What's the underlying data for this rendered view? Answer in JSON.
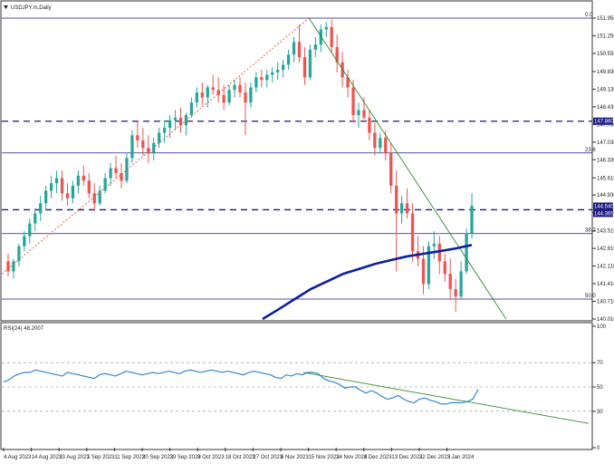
{
  "header": {
    "symbol_label": "USDJPY.m,Daily",
    "dropdown_icon": "triangle-down-icon"
  },
  "rsi_panel": {
    "label": "RSI(24) 48.2007"
  },
  "colors": {
    "bull_candle": "#26a69a",
    "bear_candle": "#ef5350",
    "ma_line": "#0a1fa3",
    "trendline": "#2e8b2e",
    "fib_line": "#1a1a80",
    "rsi_line": "#2f86d6",
    "dashed_level": "#1a1a80",
    "highlight_label_bg": "#1a1a80"
  },
  "chart_data": [
    {
      "type": "candlestick",
      "symbol": "USDJPY.m",
      "timeframe": "Daily",
      "ylim": [
        140.01,
        151.95
      ],
      "y_ticks": [
        151.95,
        151.25,
        150.55,
        149.83,
        149.13,
        148.43,
        147.73,
        147.03,
        146.33,
        145.61,
        144.93,
        144.23,
        143.51,
        142.81,
        142.11,
        141.41,
        140.71,
        140.01
      ],
      "y_tick_labels": [
        "151.950",
        "151.250",
        "150.550",
        "149.830",
        "149.130",
        "148.430",
        "147.730",
        "147.030",
        "146.330",
        "145.610",
        "144.930",
        "144.230",
        "143.510",
        "142.810",
        "142.110",
        "141.410",
        "140.710",
        "140.010"
      ],
      "x_tick_labels": [
        "4 Aug 2023",
        "14 Aug 2023",
        "23 Aug 2023",
        "1 Sep 2023",
        "11 Sep 2023",
        "20 Sep 2023",
        "29 Sep 2023",
        "9 Oct 2023",
        "18 Oct 2023",
        "27 Oct 2023",
        "6 Nov 2023",
        "15 Nov 2023",
        "24 Nov 2023",
        "4 Dec 2023",
        "13 Dec 2023",
        "22 Dec 2023",
        "3 Jan 2024"
      ],
      "ohlc_approx": [
        [
          142.3,
          142.6,
          141.7,
          141.9
        ],
        [
          141.9,
          142.4,
          141.6,
          142.3
        ],
        [
          142.3,
          143.0,
          142.1,
          142.9
        ],
        [
          142.9,
          143.5,
          142.7,
          143.3
        ],
        [
          143.3,
          144.0,
          143.0,
          143.8
        ],
        [
          143.8,
          144.4,
          143.5,
          144.2
        ],
        [
          144.2,
          144.9,
          143.9,
          144.6
        ],
        [
          144.6,
          145.3,
          144.3,
          145.1
        ],
        [
          145.1,
          145.7,
          144.8,
          145.4
        ],
        [
          145.4,
          145.9,
          145.0,
          145.6
        ],
        [
          145.6,
          145.9,
          144.7,
          145.0
        ],
        [
          145.0,
          145.4,
          144.5,
          144.8
        ],
        [
          144.8,
          145.5,
          144.6,
          145.3
        ],
        [
          145.3,
          145.9,
          145.0,
          145.7
        ],
        [
          145.7,
          146.1,
          145.3,
          145.5
        ],
        [
          145.5,
          145.8,
          144.8,
          145.0
        ],
        [
          145.0,
          145.4,
          144.3,
          144.6
        ],
        [
          144.6,
          145.3,
          144.5,
          145.1
        ],
        [
          145.1,
          145.8,
          145.0,
          145.6
        ],
        [
          145.6,
          146.2,
          145.3,
          146.0
        ],
        [
          146.0,
          146.5,
          145.6,
          145.8
        ],
        [
          145.8,
          146.2,
          145.2,
          145.5
        ],
        [
          145.5,
          146.6,
          145.4,
          146.4
        ],
        [
          146.4,
          147.5,
          146.2,
          147.3
        ],
        [
          147.3,
          147.9,
          146.8,
          147.1
        ],
        [
          147.1,
          147.6,
          146.5,
          146.8
        ],
        [
          146.8,
          147.3,
          146.2,
          146.6
        ],
        [
          146.6,
          147.2,
          146.3,
          147.0
        ],
        [
          147.0,
          147.6,
          146.8,
          147.4
        ],
        [
          147.4,
          147.9,
          147.0,
          147.6
        ],
        [
          147.6,
          148.1,
          147.2,
          147.9
        ],
        [
          147.9,
          148.3,
          147.5,
          148.0
        ],
        [
          148.0,
          148.4,
          147.4,
          147.7
        ],
        [
          147.7,
          148.2,
          147.3,
          148.1
        ],
        [
          148.1,
          148.8,
          148.0,
          148.6
        ],
        [
          148.6,
          149.2,
          148.4,
          149.0
        ],
        [
          149.0,
          149.4,
          148.5,
          148.8
        ],
        [
          148.8,
          149.3,
          148.4,
          149.2
        ],
        [
          149.2,
          149.7,
          148.9,
          149.1
        ],
        [
          149.1,
          149.6,
          148.6,
          148.9
        ],
        [
          148.9,
          149.3,
          148.3,
          148.6
        ],
        [
          148.6,
          149.3,
          148.5,
          149.1
        ],
        [
          149.1,
          149.5,
          148.8,
          149.3
        ],
        [
          149.3,
          149.6,
          148.8,
          149.0
        ],
        [
          149.0,
          149.4,
          147.3,
          148.6
        ],
        [
          148.6,
          149.4,
          148.4,
          149.2
        ],
        [
          149.2,
          149.8,
          149.0,
          149.6
        ],
        [
          149.6,
          149.9,
          149.2,
          149.5
        ],
        [
          149.5,
          149.9,
          149.2,
          149.7
        ],
        [
          149.7,
          150.0,
          149.4,
          149.8
        ],
        [
          149.8,
          150.2,
          149.5,
          149.9
        ],
        [
          149.9,
          150.3,
          149.6,
          150.1
        ],
        [
          150.1,
          150.7,
          149.9,
          150.5
        ],
        [
          150.5,
          151.2,
          150.2,
          151.0
        ],
        [
          151.0,
          151.7,
          150.2,
          150.4
        ],
        [
          150.4,
          150.8,
          149.3,
          149.6
        ],
        [
          149.6,
          150.9,
          149.5,
          150.7
        ],
        [
          150.7,
          151.2,
          150.4,
          150.9
        ],
        [
          150.9,
          151.7,
          150.6,
          151.5
        ],
        [
          151.5,
          151.8,
          151.2,
          151.6
        ],
        [
          151.6,
          151.9,
          150.6,
          150.8
        ],
        [
          150.8,
          151.3,
          149.8,
          150.2
        ],
        [
          150.2,
          150.6,
          149.2,
          149.6
        ],
        [
          149.6,
          149.9,
          148.8,
          149.2
        ],
        [
          149.2,
          149.5,
          147.8,
          148.1
        ],
        [
          148.1,
          148.6,
          147.6,
          148.3
        ],
        [
          148.3,
          148.8,
          147.9,
          148.0
        ],
        [
          148.0,
          148.3,
          147.1,
          147.4
        ],
        [
          147.4,
          147.8,
          146.5,
          146.8
        ],
        [
          146.8,
          147.4,
          146.6,
          147.2
        ],
        [
          147.2,
          147.5,
          146.3,
          146.6
        ],
        [
          146.6,
          147.0,
          145.0,
          145.3
        ],
        [
          145.3,
          145.9,
          141.9,
          144.2
        ],
        [
          144.2,
          144.9,
          143.8,
          144.6
        ],
        [
          144.6,
          145.2,
          144.0,
          144.2
        ],
        [
          144.2,
          144.6,
          142.3,
          142.7
        ],
        [
          142.7,
          143.3,
          142.1,
          142.4
        ],
        [
          142.4,
          142.9,
          141.0,
          141.4
        ],
        [
          141.4,
          143.1,
          141.2,
          142.9
        ],
        [
          142.9,
          143.5,
          142.4,
          143.0
        ],
        [
          143.0,
          143.3,
          141.8,
          142.3
        ],
        [
          142.3,
          142.6,
          141.5,
          141.8
        ],
        [
          141.8,
          142.4,
          140.8,
          141.2
        ],
        [
          141.2,
          141.6,
          140.3,
          140.9
        ],
        [
          140.9,
          142.3,
          140.8,
          141.9
        ],
        [
          141.9,
          143.6,
          141.8,
          143.4
        ],
        [
          143.4,
          145.0,
          143.2,
          144.5
        ]
      ],
      "moving_average": {
        "x_start_fraction": 0.45,
        "values": [
          140.01,
          140.4,
          140.8,
          141.2,
          141.5,
          141.8,
          142.0,
          142.2,
          142.35,
          142.5,
          142.6,
          142.7,
          142.81,
          142.95
        ]
      },
      "horizontal_levels": [
        {
          "value": 151.95,
          "style": "solid",
          "label": "0.0"
        },
        {
          "value": 147.86,
          "style": "dashed",
          "label": "147.860"
        },
        {
          "value": 146.6,
          "style": "solid",
          "label": "23.6"
        },
        {
          "value": 144.345,
          "style": "dashed",
          "label_top": "144.540",
          "label_bottom": "144.365"
        },
        {
          "value": 143.4,
          "style": "solid",
          "label": "38.2"
        },
        {
          "value": 140.8,
          "style": "solid",
          "label": "50.0"
        }
      ],
      "trendlines": [
        {
          "name": "downtrend",
          "from": [
            0.53,
            151.95
          ],
          "to": [
            0.87,
            140.01
          ],
          "color": "#2e8b2e"
        },
        {
          "name": "fib-anchor",
          "from": [
            0.0,
            141.8
          ],
          "to": [
            0.53,
            151.95
          ],
          "style": "dotted",
          "color": "#e0533b"
        }
      ]
    },
    {
      "type": "line",
      "label": "RSI(24) 48.2007",
      "ylim": [
        0,
        100
      ],
      "y_ticks": [
        100,
        70,
        50,
        30,
        0
      ],
      "levels": [
        70,
        50,
        30
      ],
      "values": [
        54,
        56,
        59,
        61,
        62,
        62,
        64,
        63,
        62,
        61,
        60,
        59,
        62,
        61,
        60,
        59,
        58,
        57,
        60,
        61,
        60,
        59,
        61,
        63,
        62,
        61,
        60,
        61,
        62,
        61,
        62,
        63,
        62,
        61,
        63,
        64,
        63,
        62,
        63,
        64,
        63,
        62,
        63,
        62,
        61,
        60,
        62,
        63,
        62,
        61,
        60,
        58,
        57,
        60,
        59,
        61,
        60,
        62,
        62,
        61,
        57,
        55,
        54,
        52,
        49,
        50,
        50,
        47,
        45,
        47,
        45,
        42,
        40,
        41,
        43,
        40,
        38,
        37,
        40,
        41,
        39,
        38,
        36,
        36,
        37,
        37,
        37,
        38,
        40,
        48
      ],
      "trendline": {
        "from": [
          0.52,
          62
        ],
        "to": [
          0.95,
          20
        ]
      }
    }
  ]
}
